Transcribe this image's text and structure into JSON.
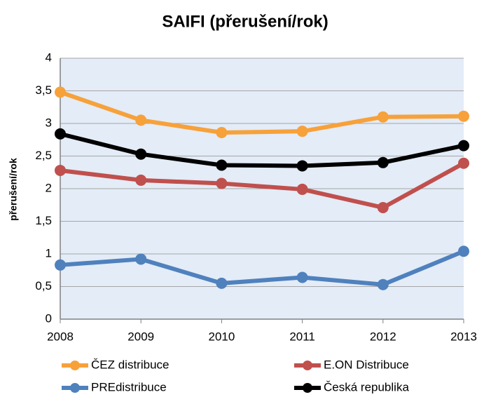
{
  "chart_data": {
    "type": "line",
    "title": "SAIFI (přerušení/rok)",
    "y_label": "přerušení/rok",
    "categories": [
      "2008",
      "2009",
      "2010",
      "2011",
      "2012",
      "2013"
    ],
    "series": [
      {
        "name": "ČEZ distribuce",
        "color": "#f7a13a",
        "values": [
          3.48,
          3.05,
          2.86,
          2.88,
          3.1,
          3.11
        ]
      },
      {
        "name": "E.ON Distribuce",
        "color": "#c0504d",
        "values": [
          2.28,
          2.13,
          2.08,
          1.99,
          1.71,
          2.39
        ]
      },
      {
        "name": "PREdistribuce",
        "color": "#4f81bd",
        "values": [
          0.83,
          0.92,
          0.55,
          0.64,
          0.53,
          1.04
        ]
      },
      {
        "name": "Česká republika",
        "color": "#000000",
        "values": [
          2.84,
          2.53,
          2.36,
          2.35,
          2.4,
          2.66
        ]
      }
    ],
    "ylim": [
      0,
      4
    ],
    "yticks": [
      0,
      {
        "value": 0.5,
        "label": "0,5"
      },
      1,
      {
        "value": 1.5,
        "label": "1,5"
      },
      2,
      {
        "value": 2.5,
        "label": "2,5"
      },
      3,
      {
        "value": 3.5,
        "label": "3,5"
      },
      4
    ],
    "grid": true,
    "legend": "bottom"
  }
}
